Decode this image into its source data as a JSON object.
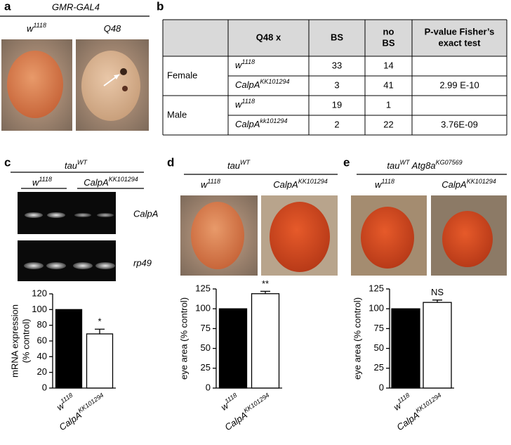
{
  "panel_a": {
    "label": "a",
    "title": "GMR-GAL4",
    "columns": [
      [
        {
          "t": "w"
        },
        {
          "t": "1118",
          "sup": true
        }
      ],
      [
        {
          "t": "Q48"
        }
      ]
    ]
  },
  "panel_b": {
    "label": "b",
    "table": {
      "header": [
        [
          "Q48 x"
        ],
        [
          "BS"
        ],
        [
          "no",
          "BS"
        ],
        [
          "P-value Fisher’s",
          "exact test"
        ]
      ],
      "groups": [
        {
          "sex": "Female",
          "rows": [
            {
              "genotype": [
                {
                  "t": "w"
                },
                {
                  "t": "1118",
                  "sup": true
                }
              ],
              "bs": 33,
              "no_bs": 14
            },
            {
              "genotype": [
                {
                  "t": "CalpA"
                },
                {
                  "t": "KK101294",
                  "sup": true
                }
              ],
              "bs": 3,
              "no_bs": 41,
              "p_value": "2.99 E-10"
            }
          ]
        },
        {
          "sex": "Male",
          "rows": [
            {
              "genotype": [
                {
                  "t": "w"
                },
                {
                  "t": "1118",
                  "sup": true
                }
              ],
              "bs": 19,
              "no_bs": 1
            },
            {
              "genotype": [
                {
                  "t": "CalpA"
                },
                {
                  "t": "kk101294",
                  "sup": true
                }
              ],
              "bs": 2,
              "no_bs": 22,
              "p_value": "3.76E-09"
            }
          ]
        }
      ]
    }
  },
  "panel_c": {
    "label": "c",
    "title": [
      {
        "t": "tau"
      },
      {
        "t": "WT",
        "sup": true
      }
    ],
    "groups": [
      [
        {
          "t": "w"
        },
        {
          "t": "1118",
          "sup": true
        }
      ],
      [
        {
          "t": "CalpA"
        },
        {
          "t": "KK101294",
          "sup": true
        }
      ]
    ],
    "gel_labels": [
      "CalpA",
      "rp49"
    ]
  },
  "panel_d": {
    "label": "d",
    "title": [
      {
        "t": "tau"
      },
      {
        "t": "WT",
        "sup": true
      }
    ],
    "groups": [
      [
        {
          "t": "w"
        },
        {
          "t": "1118",
          "sup": true
        }
      ],
      [
        {
          "t": "CalpA"
        },
        {
          "t": "KK101294",
          "sup": true
        }
      ]
    ]
  },
  "panel_e": {
    "label": "e",
    "title": [
      {
        "t": "tau"
      },
      {
        "t": "WT",
        "sup": true
      },
      {
        "t": " Atg8a"
      },
      {
        "t": "KG07569",
        "sup": true
      }
    ],
    "groups": [
      [
        {
          "t": "w"
        },
        {
          "t": "1118",
          "sup": true
        }
      ],
      [
        {
          "t": "CalpA"
        },
        {
          "t": "KK101294",
          "sup": true
        }
      ]
    ]
  },
  "chart_data": [
    {
      "type": "bar",
      "ylabel": [
        "mRNA expression",
        "(% control)"
      ],
      "categories": [
        [
          {
            "t": "w"
          },
          {
            "t": "1118",
            "sup": true
          }
        ],
        [
          {
            "t": "CalpA"
          },
          {
            "t": "KK101294",
            "sup": true
          }
        ]
      ],
      "values": [
        100,
        69
      ],
      "errors": [
        null,
        6
      ],
      "colors": [
        "#000000",
        "#ffffff"
      ],
      "annotation": "*",
      "ylim": [
        0,
        120
      ],
      "yticks": [
        0,
        20,
        40,
        60,
        80,
        100,
        120
      ]
    },
    {
      "type": "bar",
      "ylabel": [
        "eye area (% control)"
      ],
      "categories": [
        [
          {
            "t": "w"
          },
          {
            "t": "1118",
            "sup": true
          }
        ],
        [
          {
            "t": "CalpA"
          },
          {
            "t": "KK101294",
            "sup": true
          }
        ]
      ],
      "values": [
        100,
        119
      ],
      "errors": [
        null,
        3
      ],
      "colors": [
        "#000000",
        "#ffffff"
      ],
      "annotation": "**",
      "ylim": [
        0,
        125
      ],
      "yticks": [
        0,
        25,
        50,
        75,
        100,
        125
      ]
    },
    {
      "type": "bar",
      "ylabel": [
        "eye area (% control)"
      ],
      "categories": [
        [
          {
            "t": "w"
          },
          {
            "t": "1118",
            "sup": true
          }
        ],
        [
          {
            "t": "CalpA"
          },
          {
            "t": "KK101294",
            "sup": true
          }
        ]
      ],
      "values": [
        100,
        108
      ],
      "errors": [
        null,
        3
      ],
      "colors": [
        "#000000",
        "#ffffff"
      ],
      "annotation": "NS",
      "ylim": [
        0,
        125
      ],
      "yticks": [
        0,
        25,
        50,
        75,
        100,
        125
      ]
    }
  ]
}
